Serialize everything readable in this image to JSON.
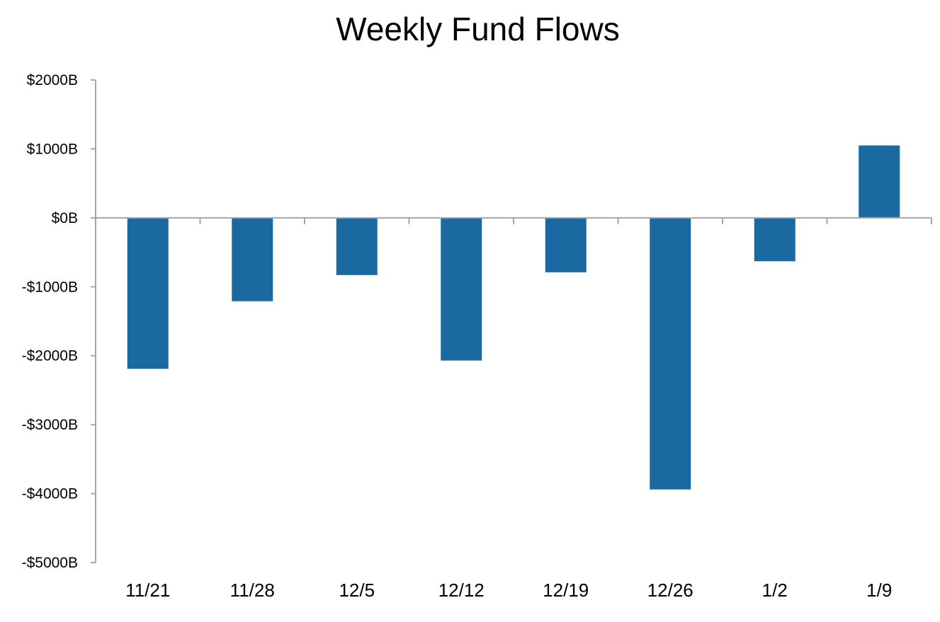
{
  "chart_data": {
    "type": "bar",
    "title": "Weekly Fund Flows",
    "xlabel": "",
    "ylabel": "",
    "categories": [
      "11/21",
      "11/28",
      "12/5",
      "12/12",
      "12/19",
      "12/26",
      "1/2",
      "1/9"
    ],
    "values": [
      -2190,
      -1210,
      -830,
      -2070,
      -790,
      -3940,
      -630,
      1050
    ],
    "ylim": [
      -5000,
      2000
    ],
    "yticks": [
      2000,
      1000,
      0,
      -1000,
      -2000,
      -3000,
      -4000,
      -5000
    ],
    "ytick_labels": [
      "$2000B",
      "$1000B",
      "$0B",
      "-$1000B",
      "-$2000B",
      "-$3000B",
      "-$4000B",
      "-$5000B"
    ],
    "bar_color": "#1a69a0",
    "axis_color": "#a6a6a6",
    "grid": false,
    "legend": "none"
  }
}
